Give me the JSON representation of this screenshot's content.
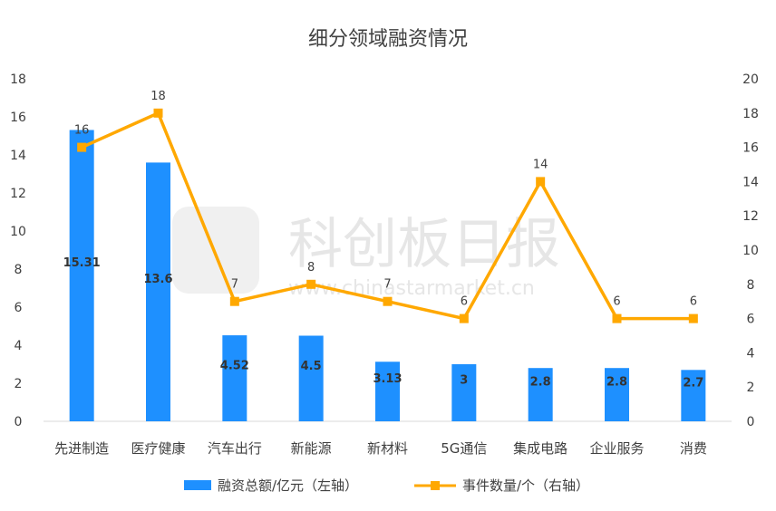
{
  "chart_data": {
    "type": "bar",
    "title": "细分领域融资情况",
    "categories": [
      "先进制造",
      "医疗健康",
      "汽车出行",
      "新能源",
      "新材料",
      "5G通信",
      "集成电路",
      "企业服务",
      "消费"
    ],
    "series": [
      {
        "name": "融资总额/亿元（左轴）",
        "type": "bar",
        "axis": "left",
        "color": "#1e90ff",
        "values": [
          15.31,
          13.6,
          4.52,
          4.5,
          3.13,
          3,
          2.8,
          2.8,
          2.7
        ],
        "labels": [
          "15.31",
          "13.6",
          "4.52",
          "4.5",
          "3.13",
          "3",
          "2.8",
          "2.8",
          "2.7"
        ]
      },
      {
        "name": "事件数量/个（右轴）",
        "type": "line",
        "axis": "right",
        "color": "#ffa800",
        "values": [
          16,
          18,
          7,
          8,
          7,
          6,
          14,
          6,
          6
        ],
        "labels": [
          "16",
          "18",
          "7",
          "8",
          "7",
          "6",
          "14",
          "6",
          "6"
        ]
      }
    ],
    "y_left": {
      "ylim": [
        0,
        18
      ],
      "ticks": [
        "0",
        "2",
        "4",
        "6",
        "8",
        "10",
        "12",
        "14",
        "16",
        "18"
      ]
    },
    "y_right": {
      "ylim": [
        0,
        20
      ],
      "ticks": [
        "0",
        "2",
        "4",
        "6",
        "8",
        "10",
        "12",
        "14",
        "16",
        "18",
        "20"
      ]
    },
    "grid": false,
    "legend_position": "bottom"
  },
  "watermark": {
    "text_cn": "科创板日报",
    "text_en": "www.chinastarmarket.cn"
  }
}
